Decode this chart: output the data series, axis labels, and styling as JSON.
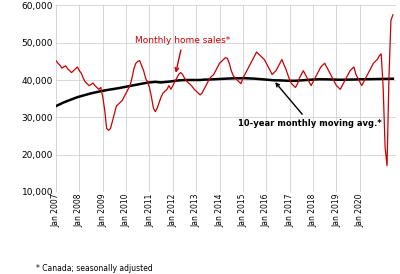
{
  "footnote": "* Canada; seasonally adjusted",
  "annotation_sales": "Monthly home sales*",
  "annotation_avg_label": "10-year monthly moving avg.*",
  "ylim": [
    10000,
    60000
  ],
  "yticks": [
    10000,
    20000,
    30000,
    40000,
    50000,
    60000
  ],
  "sales_color": "#cc0000",
  "avg_color": "#000000",
  "background_color": "#ffffff",
  "grid_color": "#c8c8c8",
  "monthly_sales": [
    45200,
    44500,
    44000,
    43200,
    43500,
    43800,
    43000,
    42500,
    42000,
    42500,
    43000,
    43500,
    42500,
    41800,
    40500,
    39500,
    39000,
    38500,
    38800,
    39200,
    38500,
    38000,
    37500,
    38000,
    35500,
    32000,
    27000,
    26500,
    27000,
    29000,
    31000,
    33000,
    33500,
    34000,
    34500,
    35500,
    36500,
    37500,
    38500,
    40500,
    43000,
    44500,
    45000,
    45200,
    43800,
    42500,
    40500,
    39500,
    38000,
    35500,
    32500,
    31500,
    32500,
    34000,
    35500,
    36500,
    37000,
    37500,
    38500,
    37500,
    38500,
    39500,
    40500,
    41500,
    42000,
    41500,
    40500,
    39800,
    39200,
    38800,
    38200,
    37500,
    37000,
    36500,
    36000,
    36500,
    37500,
    38500,
    39500,
    40500,
    41000,
    41500,
    42500,
    43500,
    44500,
    45000,
    45500,
    46000,
    45800,
    44500,
    42500,
    41200,
    40500,
    40000,
    39500,
    39000,
    40500,
    41500,
    42500,
    43500,
    44500,
    45500,
    46500,
    47500,
    47000,
    46500,
    46000,
    45500,
    44500,
    43500,
    42500,
    41500,
    42000,
    42500,
    43500,
    44500,
    45500,
    44200,
    43000,
    41500,
    40000,
    39000,
    38500,
    38000,
    39000,
    40500,
    41500,
    42500,
    41500,
    40500,
    39500,
    38500,
    39500,
    40500,
    41500,
    42500,
    43500,
    44000,
    44500,
    43500,
    42500,
    41500,
    40500,
    39500,
    38500,
    38000,
    37500,
    38500,
    39500,
    40500,
    41500,
    42500,
    43000,
    43500,
    41500,
    40500,
    39500,
    38500,
    39500,
    40500,
    41500,
    42500,
    43500,
    44500,
    45000,
    45500,
    46500,
    47000,
    38000,
    22000,
    17000,
    41000,
    56000,
    57500
  ],
  "moving_avg": [
    33000,
    33250,
    33500,
    33750,
    34000,
    34200,
    34400,
    34600,
    34800,
    35000,
    35200,
    35400,
    35550,
    35700,
    35850,
    36000,
    36150,
    36300,
    36420,
    36540,
    36660,
    36780,
    36900,
    37000,
    37100,
    37200,
    37300,
    37380,
    37460,
    37540,
    37620,
    37700,
    37800,
    37900,
    38000,
    38100,
    38200,
    38300,
    38400,
    38500,
    38600,
    38700,
    38800,
    38900,
    39000,
    39100,
    39200,
    39300,
    39350,
    39400,
    39450,
    39500,
    39450,
    39400,
    39350,
    39400,
    39450,
    39500,
    39550,
    39620,
    39700,
    39800,
    39850,
    39900,
    39930,
    39960,
    39980,
    40000,
    40000,
    40000,
    40000,
    40000,
    40000,
    40000,
    40000,
    40050,
    40100,
    40100,
    40120,
    40140,
    40160,
    40200,
    40220,
    40250,
    40270,
    40300,
    40320,
    40350,
    40380,
    40400,
    40420,
    40440,
    40460,
    40480,
    40450,
    40480,
    40500,
    40480,
    40460,
    40420,
    40400,
    40380,
    40360,
    40320,
    40300,
    40250,
    40200,
    40150,
    40100,
    40050,
    40000,
    39950,
    39920,
    39900,
    39900,
    39900,
    39870,
    39850,
    39830,
    39800,
    39800,
    39800,
    39800,
    39810,
    39830,
    39870,
    39900,
    39940,
    39980,
    40020,
    40060,
    40100,
    40120,
    40150,
    40170,
    40200,
    40200,
    40200,
    40200,
    40180,
    40160,
    40150,
    40140,
    40120,
    40100,
    40080,
    40060,
    40080,
    40100,
    40100,
    40100,
    40110,
    40120,
    40130,
    40140,
    40180,
    40200,
    40200,
    40200,
    40200,
    40210,
    40220,
    40230,
    40240,
    40250,
    40260,
    40270,
    40280,
    40290,
    40300,
    40310,
    40320,
    40330,
    40340
  ]
}
